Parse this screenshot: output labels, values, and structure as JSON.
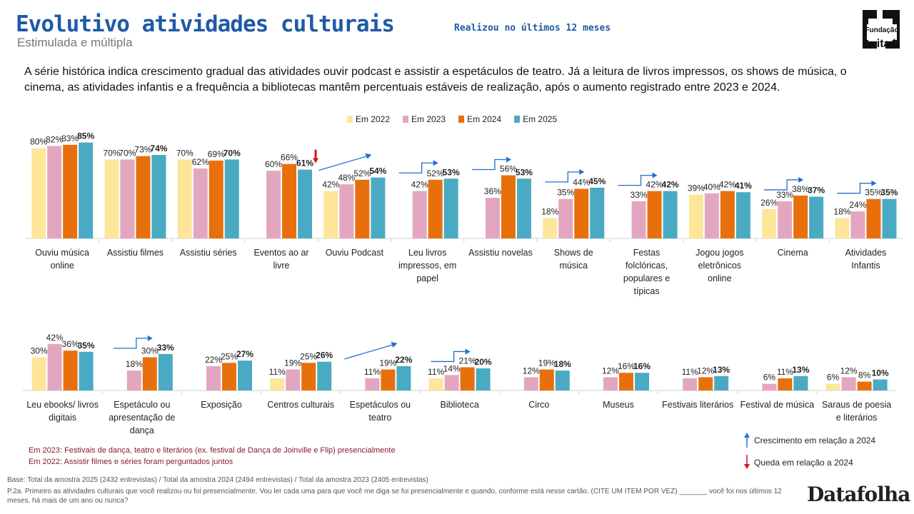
{
  "header": {
    "title": "Evolutivo atividades culturais",
    "subtitle_right": "Realizou no últimos 12 meses",
    "subtitle": "Estimulada e múltipla",
    "logo_text": "Fundação Itaú"
  },
  "summary": "A série histórica indica crescimento gradual das atividades ouvir podcast e assistir a espetáculos de teatro. Já a leitura de livros impressos, os shows de música, o cinema, as atividades infantis e a frequência a bibliotecas mantêm percentuais estáveis de realização, após o aumento registrado entre 2023 e 2024.",
  "legend": [
    {
      "label": "Em 2022",
      "color": "#fde69a"
    },
    {
      "label": "Em 2023",
      "color": "#e3a6c0"
    },
    {
      "label": "Em 2024",
      "color": "#e8700c"
    },
    {
      "label": "Em 2025",
      "color": "#4aaac4"
    }
  ],
  "chart_data": [
    {
      "type": "bar",
      "series_names": [
        "Em 2022",
        "Em 2023",
        "Em 2024",
        "Em 2025"
      ],
      "categories": [
        "Ouviu música online",
        "Assistiu filmes",
        "Assistiu séries",
        "Eventos ao ar livre",
        "Ouviu Podcast",
        "Leu livros impressos, em papel",
        "Assistiu novelas",
        "Shows de música",
        "Festas folclóricas, populares e típicas",
        "Jogou jogos eletrônicos online",
        "Cinema",
        "Atividades Infantis"
      ],
      "category_lines": [
        [
          "Ouviu música",
          "online"
        ],
        [
          "Assistiu filmes"
        ],
        [
          "Assistiu séries"
        ],
        [
          "Eventos ao ar",
          "livre"
        ],
        [
          "Ouviu Podcast"
        ],
        [
          "Leu livros",
          "impressos, em",
          "papel"
        ],
        [
          "Assistiu novelas"
        ],
        [
          "Shows de",
          "música"
        ],
        [
          "Festas",
          "folclóricas,",
          "populares e",
          "típicas"
        ],
        [
          "Jogou jogos",
          "eletrônicos",
          "online"
        ],
        [
          "Cinema"
        ],
        [
          "Atividades",
          "Infantis"
        ]
      ],
      "values": [
        [
          80,
          82,
          83,
          85
        ],
        [
          70,
          70,
          73,
          74
        ],
        [
          70,
          62,
          69,
          70
        ],
        [
          null,
          60,
          66,
          61
        ],
        [
          42,
          48,
          52,
          54
        ],
        [
          null,
          42,
          52,
          53
        ],
        [
          null,
          36,
          56,
          53
        ],
        [
          18,
          35,
          44,
          45
        ],
        [
          null,
          33,
          42,
          42
        ],
        [
          39,
          40,
          42,
          41
        ],
        [
          26,
          33,
          38,
          37
        ],
        [
          18,
          24,
          35,
          35
        ]
      ],
      "trend": [
        null,
        null,
        null,
        "down",
        "diagonal",
        "step",
        "step",
        "step",
        "step",
        null,
        "step",
        "step"
      ],
      "unit": "%"
    },
    {
      "type": "bar",
      "series_names": [
        "Em 2022",
        "Em 2023",
        "Em 2024",
        "Em 2025"
      ],
      "categories": [
        "Leu ebooks/ livros digitais",
        "Espetáculo ou apresentação de dança",
        "Exposição",
        "Centros culturais",
        "Espetáculos ou teatro",
        "Biblioteca",
        "Circo",
        "Museus",
        "Festivais literários",
        "Festival de música",
        "Saraus de poesia e literários"
      ],
      "category_lines": [
        [
          "Leu ebooks/ livros",
          "digitais"
        ],
        [
          "Espetáculo ou",
          "apresentação de",
          "dança"
        ],
        [
          "Exposição"
        ],
        [
          "Centros culturais"
        ],
        [
          "Espetáculos ou",
          "teatro"
        ],
        [
          "Biblioteca"
        ],
        [
          "Circo"
        ],
        [
          "Museus"
        ],
        [
          "Festivais literários"
        ],
        [
          "Festival de música"
        ],
        [
          "Saraus de poesia",
          "e literários"
        ]
      ],
      "values": [
        [
          30,
          42,
          36,
          35
        ],
        [
          null,
          18,
          30,
          33
        ],
        [
          null,
          22,
          25,
          27
        ],
        [
          11,
          19,
          25,
          26
        ],
        [
          null,
          11,
          19,
          22
        ],
        [
          11,
          14,
          21,
          20
        ],
        [
          null,
          12,
          19,
          18
        ],
        [
          null,
          12,
          16,
          16
        ],
        [
          null,
          11,
          12,
          13
        ],
        [
          null,
          6,
          11,
          13
        ],
        [
          6,
          12,
          8,
          10
        ]
      ],
      "trend": [
        null,
        "step",
        null,
        null,
        "diagonal",
        "step",
        null,
        null,
        null,
        null,
        null
      ],
      "unit": "%"
    }
  ],
  "notes": [
    "Em 2023: Festivais de dança, teatro e  literários (ex. festival de Dança de Joinville e Flip) presencialmente",
    "Em 2022: Assistir filmes e séries foram perguntados juntos"
  ],
  "key": {
    "growth": "Crescimento em relação a 2024",
    "decline": "Queda em relação a 2024",
    "growth_color": "#1f6fd1",
    "decline_color": "#d0161c"
  },
  "base": "Base: Total da amostra 2025 (2432 entrevistas) / Total da amostra 2024  (2494 entrevistas) / Total da amostra 2023 (2405 entrevistas)",
  "question": "P.2a. Primeiro as atividades culturais que você realizou ou foi presencialmente. Vou ler cada uma para que você me diga se foi presencialmente e quando, conforme está nesse cartão. (CITE UM ITEM POR VEZ) _______ você foi nos últimos 12 meses, há mais de um ano ou nunca?",
  "footer_brand": "Datafolha"
}
